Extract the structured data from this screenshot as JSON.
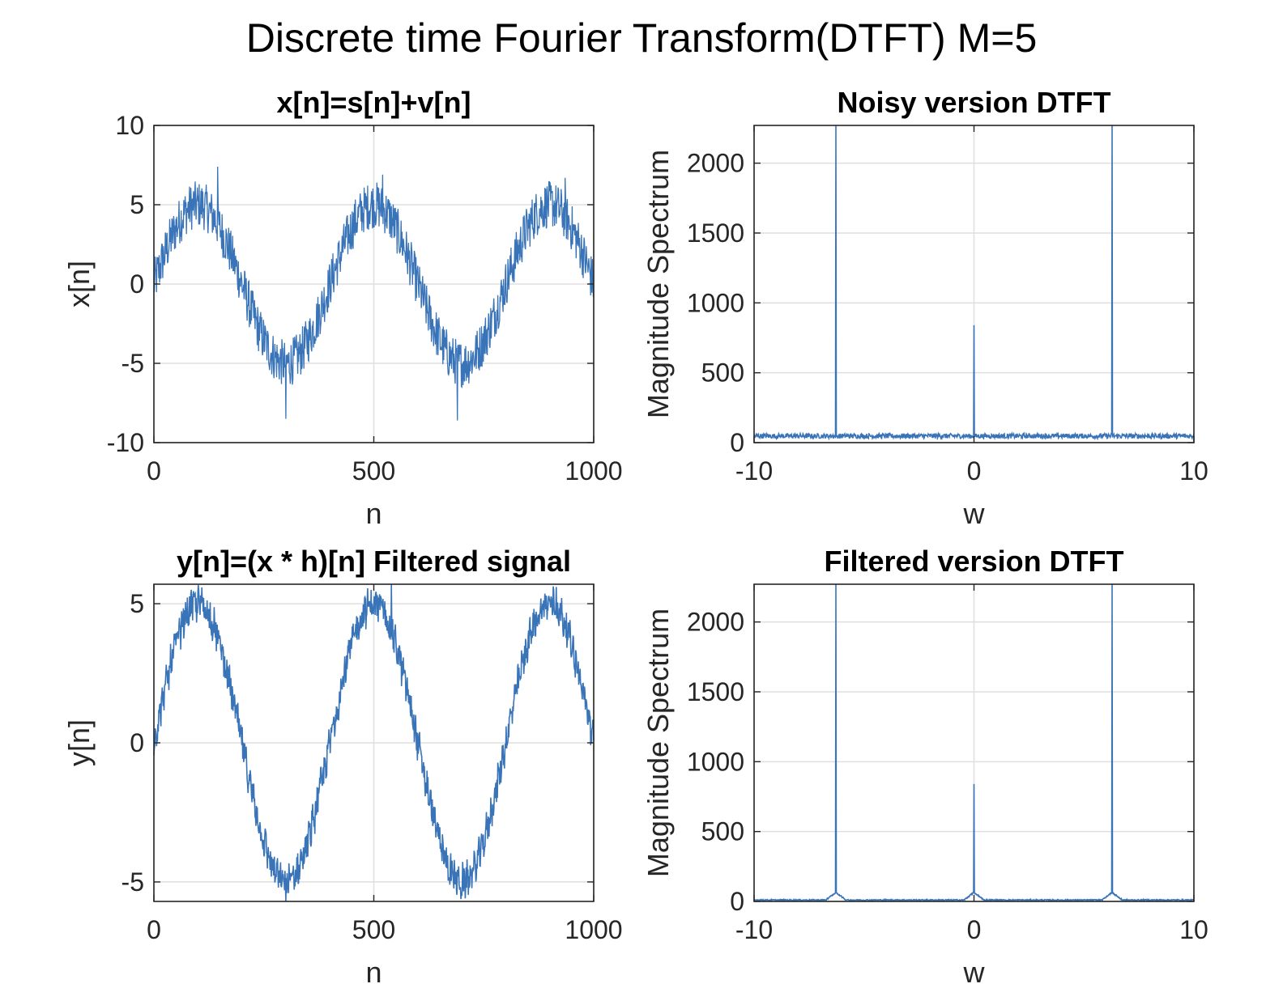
{
  "figure": {
    "title": "Discrete time Fourier Transform(DTFT) M=5",
    "background": "#ffffff",
    "line_color": "#3a74b8",
    "grid_color": "#dfdfdf",
    "axis_color": "#262626"
  },
  "chart_data": [
    {
      "id": "xn",
      "type": "line",
      "title": "x[n]=s[n]+v[n]",
      "xlabel": "n",
      "ylabel": "x[n]",
      "xlim": [
        0,
        1000
      ],
      "ylim": [
        -10,
        10
      ],
      "xticks": [
        0,
        500,
        1000
      ],
      "yticks": [
        -10,
        -5,
        0,
        5,
        10
      ],
      "grid": true,
      "series": [
        {
          "x": [
            0,
            25,
            50,
            75,
            100,
            125,
            150,
            175,
            200,
            225,
            250,
            275,
            300,
            325,
            350,
            375,
            400,
            425,
            450,
            475,
            500,
            525,
            550,
            575,
            600,
            625,
            650,
            675,
            700,
            725,
            750,
            775,
            800,
            825,
            850,
            875,
            900,
            925,
            950,
            975,
            1000
          ],
          "y": [
            0,
            1.9,
            3.5,
            4.6,
            5.0,
            4.6,
            3.5,
            1.9,
            0,
            -1.9,
            -3.5,
            -4.6,
            -5.0,
            -4.6,
            -3.5,
            -1.9,
            0,
            1.9,
            3.5,
            4.6,
            5.0,
            4.6,
            3.5,
            1.9,
            0,
            -1.9,
            -3.5,
            -4.6,
            -5.0,
            -4.6,
            -3.5,
            -1.9,
            0,
            1.9,
            3.5,
            4.6,
            5.0,
            4.6,
            3.5,
            1.9,
            0
          ],
          "noise_amplitude": 1.5,
          "noise_peaks": [
            [
              145,
              7.4
            ],
            [
              300,
              -8.5
            ],
            [
              520,
              6.9
            ],
            [
              690,
              -8.6
            ],
            [
              935,
              6.7
            ]
          ]
        }
      ]
    },
    {
      "id": "xw",
      "type": "line",
      "title": "Noisy version DTFT",
      "xlabel": "w",
      "ylabel": "Magnitude Spectrum",
      "xlim": [
        -10,
        10
      ],
      "ylim": [
        0,
        2270
      ],
      "xticks": [
        -10,
        0,
        10
      ],
      "yticks": [
        0,
        500,
        1000,
        1500,
        2000
      ],
      "grid": true,
      "series": [
        {
          "x": [
            -6.28,
            0,
            6.28
          ],
          "y": [
            2270,
            840,
            2270
          ],
          "floor": 30,
          "floor_noise": 35
        }
      ]
    },
    {
      "id": "yn",
      "type": "line",
      "title": "y[n]=(x * h)[n] Filtered signal",
      "xlabel": "n",
      "ylabel": "y[n]",
      "xlim": [
        0,
        1000
      ],
      "ylim": [
        -5.7,
        5.7
      ],
      "xticks": [
        0,
        500,
        1000
      ],
      "yticks": [
        -5,
        0,
        5
      ],
      "grid": true,
      "series": [
        {
          "x": [
            0,
            25,
            50,
            75,
            100,
            125,
            150,
            175,
            200,
            225,
            250,
            275,
            300,
            325,
            350,
            375,
            400,
            425,
            450,
            475,
            500,
            525,
            550,
            575,
            600,
            625,
            650,
            675,
            700,
            725,
            750,
            775,
            800,
            825,
            850,
            875,
            900,
            925,
            950,
            975,
            1000
          ],
          "y": [
            0,
            1.9,
            3.5,
            4.6,
            5.0,
            4.6,
            3.5,
            1.9,
            0,
            -1.9,
            -3.5,
            -4.6,
            -5.0,
            -4.6,
            -3.5,
            -1.9,
            0,
            1.9,
            3.5,
            4.6,
            5.0,
            4.6,
            3.5,
            1.9,
            0,
            -1.9,
            -3.5,
            -4.6,
            -5.0,
            -4.6,
            -3.5,
            -1.9,
            0,
            1.9,
            3.5,
            4.6,
            5.0,
            4.6,
            3.5,
            1.9,
            0
          ],
          "noise_amplitude": 0.55,
          "noise_peaks": [
            [
              85,
              5.5
            ],
            [
              300,
              -5.7
            ],
            [
              540,
              5.7
            ],
            [
              700,
              -5.5
            ],
            [
              915,
              5.6
            ]
          ]
        }
      ]
    },
    {
      "id": "yw",
      "type": "line",
      "title": "Filtered version DTFT",
      "xlabel": "w",
      "ylabel": "Magnitude Spectrum",
      "xlim": [
        -10,
        10
      ],
      "ylim": [
        0,
        2270
      ],
      "xticks": [
        -10,
        0,
        10
      ],
      "yticks": [
        0,
        500,
        1000,
        1500,
        2000
      ],
      "grid": true,
      "series": [
        {
          "x": [
            -6.28,
            0,
            6.28
          ],
          "y": [
            2270,
            840,
            2270
          ],
          "floor": 6,
          "floor_noise": 8,
          "skirt_height": 60
        }
      ]
    }
  ]
}
